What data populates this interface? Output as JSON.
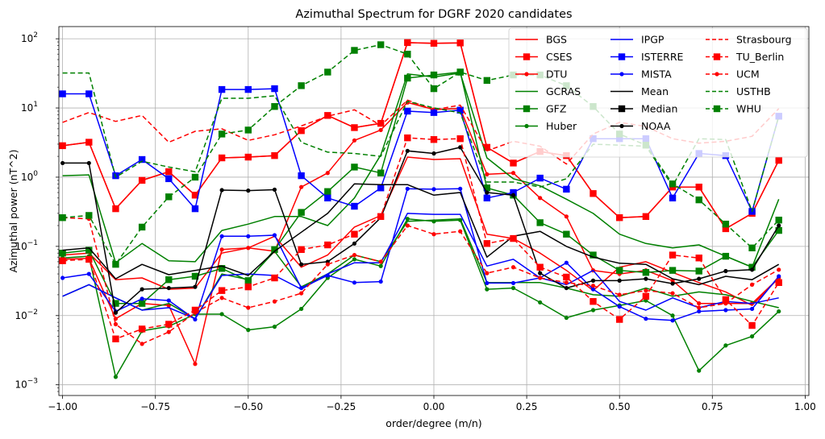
{
  "chart_data": {
    "type": "line",
    "title": "Azimuthal Spectrum for DGRF 2020 candidates",
    "xlabel": "order/degree (m/n)",
    "ylabel": "Azimuthal power (nT^2)",
    "xlim": [
      -1.01,
      1.01
    ],
    "ylim": [
      0.0007,
      150
    ],
    "yscale": "log",
    "grid": true,
    "legend_placement": "top-right",
    "legend_columns": 3,
    "x_ticks": [
      -1.0,
      -0.75,
      -0.5,
      -0.25,
      0.0,
      0.25,
      0.5,
      0.75,
      1.0
    ],
    "x_tick_labels": [
      "−1.00",
      "−0.75",
      "−0.50",
      "−0.25",
      "0.00",
      "0.25",
      "0.50",
      "0.75",
      "1.00"
    ],
    "y_ticks": [
      0.001,
      0.01,
      0.1,
      1,
      10,
      100
    ],
    "y_tick_labels": [
      {
        "base": "10",
        "exp": "−3"
      },
      {
        "base": "10",
        "exp": "−2"
      },
      {
        "base": "10",
        "exp": "−1"
      },
      {
        "base": "10",
        "exp": "0"
      },
      {
        "base": "10",
        "exp": "1"
      },
      {
        "base": "10",
        "exp": "2"
      }
    ],
    "x": [
      -1.0,
      -0.929,
      -0.857,
      -0.786,
      -0.714,
      -0.643,
      -0.571,
      -0.5,
      -0.429,
      -0.357,
      -0.286,
      -0.214,
      -0.143,
      -0.071,
      0.0,
      0.071,
      0.143,
      0.214,
      0.286,
      0.357,
      0.429,
      0.5,
      0.571,
      0.643,
      0.714,
      0.786,
      0.857,
      0.929
    ],
    "series": [
      {
        "name": "BGS",
        "color": "#ff0000",
        "dash": "solid",
        "marker": "none",
        "groups": [
          [
            2.85,
            3.2,
            0.35,
            0.9,
            1.2,
            0.55,
            1.9,
            1.95,
            2.05,
            4.7,
            7.8,
            5.2,
            6.0,
            88,
            86,
            87,
            2.7,
            1.6,
            2.35,
            2.05,
            0.58,
            0.26,
            0.27,
            0.72,
            0.72,
            0.18,
            0.3,
            1.75
          ],
          [
            0.075,
            0.08,
            0.033,
            0.035,
            0.024,
            0.025,
            0.08,
            0.095,
            0.14,
            0.05,
            0.075,
            0.19,
            0.28,
            1.95,
            1.8,
            1.85,
            0.15,
            0.13,
            0.08,
            0.045,
            0.023,
            0.05,
            0.06,
            0.042,
            0.03,
            0.022,
            0.014,
            0.035
          ]
        ]
      },
      {
        "name": "CSES",
        "color": "#ff0000",
        "dash": "solid",
        "marker": "square",
        "groups": [
          [
            2.85,
            3.2,
            0.35,
            0.9,
            1.2,
            0.55,
            1.9,
            1.95,
            2.05,
            4.7,
            7.8,
            5.2,
            6.0,
            88,
            86,
            87,
            2.7,
            1.6,
            2.35,
            2.05,
            0.58,
            0.26,
            0.27,
            0.72,
            0.72,
            0.18,
            0.3,
            1.75
          ]
        ]
      },
      {
        "name": "DTU",
        "color": "#ff0000",
        "dash": "solid",
        "marker": "dot",
        "groups": [
          [
            0.065,
            0.067,
            0.009,
            0.015,
            0.014,
            0.002,
            0.09,
            0.095,
            0.085,
            0.72,
            1.15,
            3.4,
            4.8,
            12,
            9.5,
            9.8,
            1.1,
            1.15,
            0.5,
            0.27,
            0.045,
            0.04,
            0.045,
            0.032,
            0.015,
            0.015,
            0.015,
            0.035
          ]
        ]
      },
      {
        "name": "GCRAS",
        "color": "#008000",
        "dash": "solid",
        "marker": "none",
        "groups": [
          [
            1.05,
            1.08,
            0.058,
            0.11,
            0.062,
            0.06,
            0.17,
            0.21,
            0.27,
            0.27,
            0.2,
            0.5,
            2.1,
            31,
            28,
            32,
            1.9,
            0.95,
            0.75,
            0.48,
            0.3,
            0.15,
            0.11,
            0.095,
            0.105,
            0.072,
            0.05,
            0.48
          ],
          [
            0.019,
            0.028,
            0.018,
            0.012,
            0.015,
            0.009,
            0.04,
            0.033,
            0.085,
            0.026,
            0.04,
            0.075,
            0.06,
            0.23,
            0.24,
            0.25,
            0.03,
            0.03,
            0.03,
            0.025,
            0.02,
            0.019,
            0.025,
            0.019,
            0.022,
            0.02,
            0.016,
            0.013
          ]
        ]
      },
      {
        "name": "GFZ",
        "color": "#008000",
        "dash": "solid",
        "marker": "square",
        "groups": [
          [
            0.08,
            0.088,
            0.015,
            0.015,
            0.033,
            0.037,
            0.048,
            0.032,
            0.09,
            0.31,
            0.62,
            1.4,
            1.15,
            27,
            30,
            33,
            0.7,
            0.55,
            0.22,
            0.15,
            0.075,
            0.045,
            0.042,
            0.045,
            0.044,
            0.072,
            0.05,
            0.17
          ]
        ]
      },
      {
        "name": "Huber",
        "color": "#008000",
        "dash": "solid",
        "marker": "dot",
        "groups": [
          [
            0.068,
            0.072,
            0.0013,
            0.006,
            0.007,
            0.0105,
            0.0105,
            0.0062,
            0.0069,
            0.0125,
            0.035,
            0.065,
            0.052,
            0.25,
            0.23,
            0.24,
            0.024,
            0.025,
            0.0155,
            0.0093,
            0.012,
            0.014,
            0.0165,
            0.01,
            0.0016,
            0.0037,
            0.005,
            0.0115
          ]
        ]
      },
      {
        "name": "IPGP",
        "color": "#0000ff",
        "dash": "solid",
        "marker": "none",
        "groups": [
          [
            0.019,
            0.028,
            0.018,
            0.012,
            0.013,
            0.009,
            0.038,
            0.04,
            0.038,
            0.024,
            0.04,
            0.058,
            0.058,
            0.3,
            0.29,
            0.29,
            0.052,
            0.065,
            0.035,
            0.028,
            0.045,
            0.016,
            0.012,
            0.018,
            0.013,
            0.016,
            0.015,
            0.018
          ]
        ]
      },
      {
        "name": "ISTERRE",
        "color": "#0000ff",
        "dash": "solid",
        "marker": "square",
        "groups": [
          [
            16,
            16,
            1.05,
            1.8,
            0.95,
            0.35,
            18.5,
            18.5,
            19,
            1.05,
            0.5,
            0.38,
            0.7,
            9.0,
            8.6,
            9.3,
            0.5,
            0.6,
            0.97,
            0.67,
            3.6,
            3.6,
            3.6,
            0.5,
            2.2,
            2.05,
            0.32,
            7.6
          ]
        ]
      },
      {
        "name": "MISTA",
        "color": "#0000ff",
        "dash": "solid",
        "marker": "dot",
        "groups": [
          [
            0.035,
            0.04,
            0.0115,
            0.0175,
            0.0165,
            0.0088,
            0.14,
            0.14,
            0.145,
            0.025,
            0.038,
            0.03,
            0.031,
            0.68,
            0.67,
            0.68,
            0.0295,
            0.0295,
            0.035,
            0.058,
            0.024,
            0.0135,
            0.009,
            0.0085,
            0.0115,
            0.012,
            0.0125,
            0.037
          ]
        ]
      },
      {
        "name": "Mean",
        "color": "#000000",
        "dash": "solid",
        "marker": "none",
        "groups": [
          [
            0.088,
            0.095,
            0.034,
            0.055,
            0.039,
            0.045,
            0.052,
            0.038,
            0.085,
            0.16,
            0.3,
            0.8,
            0.78,
            0.78,
            0.55,
            0.6,
            0.07,
            0.14,
            0.165,
            0.1,
            0.07,
            0.057,
            0.055,
            0.034,
            0.028,
            0.037,
            0.033,
            0.055
          ]
        ]
      },
      {
        "name": "Median",
        "color": "#000000",
        "dash": "solid",
        "marker": "square",
        "groups": []
      },
      {
        "name": "NOAA",
        "color": "#000000",
        "dash": "solid",
        "marker": "dot",
        "groups": [
          [
            1.6,
            1.6,
            0.011,
            0.024,
            0.025,
            0.026,
            0.65,
            0.64,
            0.66,
            0.055,
            0.06,
            0.11,
            0.26,
            2.4,
            2.2,
            2.7,
            0.6,
            0.55,
            0.041,
            0.025,
            0.032,
            0.032,
            0.034,
            0.029,
            0.034,
            0.044,
            0.046,
            0.2
          ]
        ]
      },
      {
        "name": "Strasbourg",
        "color": "#ff0000",
        "dash": "dashed",
        "marker": "none",
        "groups": [
          [
            6.2,
            8.6,
            6.4,
            7.8,
            3.2,
            4.6,
            5.0,
            3.4,
            4.1,
            5.5,
            7.6,
            9.4,
            5.6,
            13,
            9.4,
            11,
            2.4,
            3.3,
            2.8,
            1.55,
            4.2,
            6.2,
            5.4,
            3.6,
            3.1,
            3.3,
            3.9,
            9.8
          ]
        ]
      },
      {
        "name": "TU_Berlin",
        "color": "#ff0000",
        "dash": "dashed",
        "marker": "square",
        "groups": [
          [
            0.062,
            0.065,
            0.0046,
            0.0064,
            0.0075,
            0.012,
            0.023,
            0.026,
            0.035,
            0.09,
            0.105,
            0.15,
            0.27,
            3.7,
            3.5,
            3.6,
            0.11,
            0.13,
            0.05,
            0.036,
            0.016,
            0.0088,
            0.019,
            0.075,
            0.068,
            0.017,
            0.0072,
            0.03
          ]
        ]
      },
      {
        "name": "UCM",
        "color": "#ff0000",
        "dash": "dashed",
        "marker": "dot",
        "groups": [
          [
            0.26,
            0.25,
            0.0075,
            0.0039,
            0.0058,
            0.011,
            0.018,
            0.013,
            0.016,
            0.021,
            0.055,
            0.075,
            0.06,
            0.2,
            0.15,
            0.165,
            0.041,
            0.05,
            0.035,
            0.03,
            0.027,
            0.02,
            0.023,
            0.021,
            0.013,
            0.015,
            0.028,
            0.046
          ]
        ]
      },
      {
        "name": "USTHB",
        "color": "#008000",
        "dash": "dashed",
        "marker": "none",
        "groups": [
          [
            32,
            32,
            1.0,
            1.7,
            1.4,
            1.2,
            13.8,
            13.8,
            15,
            3.2,
            2.3,
            2.2,
            2.0,
            12.5,
            10,
            8.5,
            0.85,
            0.85,
            0.72,
            0.95,
            3.0,
            2.9,
            2.8,
            0.75,
            3.6,
            3.5,
            0.32,
            7.6
          ]
        ]
      },
      {
        "name": "WHU",
        "color": "#008000",
        "dash": "dashed",
        "marker": "square",
        "groups": [
          [
            0.26,
            0.28,
            0.055,
            0.19,
            0.52,
            1.0,
            4.2,
            4.8,
            10.5,
            21,
            33,
            68,
            82,
            60,
            19,
            33,
            25,
            30,
            30,
            21,
            10.5,
            4.2,
            2.9,
            0.8,
            0.47,
            0.21,
            0.095,
            0.24
          ]
        ]
      }
    ]
  }
}
